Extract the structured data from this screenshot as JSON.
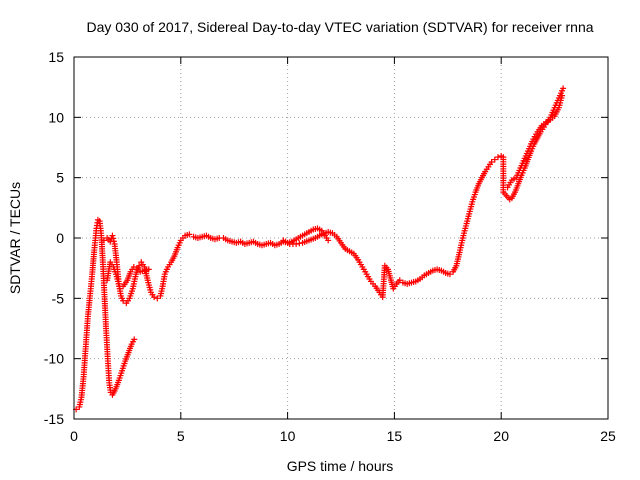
{
  "chart_data": {
    "type": "scatter",
    "title": "Day 030 of 2017, Sidereal Day-to-day VTEC variation (SDTVAR) for receiver rnna",
    "xlabel": "GPS time / hours",
    "ylabel": "SDTVAR / TECUs",
    "xlim": [
      0,
      25
    ],
    "ylim": [
      -15,
      15
    ],
    "xticks": [
      0,
      5,
      10,
      15,
      20,
      25
    ],
    "yticks": [
      -15,
      -10,
      -5,
      0,
      5,
      10,
      15
    ],
    "grid": true,
    "marker": "+",
    "color": "#ff0000",
    "series": [
      {
        "name": "SDTVAR",
        "points": [
          [
            0.1,
            -14.2
          ],
          [
            0.25,
            -14.0
          ],
          [
            0.35,
            -13.2
          ],
          [
            0.45,
            -11.5
          ],
          [
            0.55,
            -9.0
          ],
          [
            0.65,
            -6.5
          ],
          [
            0.75,
            -4.8
          ],
          [
            0.85,
            -3.0
          ],
          [
            0.95,
            -1.0
          ],
          [
            1.05,
            0.8
          ],
          [
            1.12,
            1.5
          ],
          [
            1.2,
            1.4
          ],
          [
            1.28,
            0.2
          ],
          [
            1.35,
            -2.0
          ],
          [
            1.42,
            -4.5
          ],
          [
            1.5,
            -7.5
          ],
          [
            1.58,
            -10.0
          ],
          [
            1.65,
            -12.0
          ],
          [
            1.72,
            -12.8
          ],
          [
            1.8,
            -13.0
          ],
          [
            1.95,
            -12.5
          ],
          [
            2.1,
            -11.8
          ],
          [
            2.25,
            -11.0
          ],
          [
            2.4,
            -10.2
          ],
          [
            2.55,
            -9.5
          ],
          [
            2.7,
            -8.8
          ],
          [
            2.82,
            -8.4
          ],
          [
            1.4,
            -0.2
          ],
          [
            1.55,
            0.0
          ],
          [
            1.7,
            -0.3
          ],
          [
            1.8,
            0.2
          ],
          [
            1.9,
            -0.5
          ],
          [
            2.0,
            -2.0
          ],
          [
            2.1,
            -3.8
          ],
          [
            2.2,
            -4.8
          ],
          [
            2.3,
            -5.2
          ],
          [
            2.45,
            -5.4
          ],
          [
            2.6,
            -5.0
          ],
          [
            2.75,
            -4.2
          ],
          [
            2.9,
            -3.0
          ],
          [
            3.05,
            -2.3
          ],
          [
            3.15,
            -2.0
          ],
          [
            3.3,
            -2.4
          ],
          [
            3.45,
            -3.5
          ],
          [
            3.6,
            -4.5
          ],
          [
            3.75,
            -4.9
          ],
          [
            3.9,
            -5.0
          ],
          [
            4.05,
            -4.8
          ],
          [
            4.15,
            -4.0
          ],
          [
            4.25,
            -3.0
          ],
          [
            4.4,
            -2.4
          ],
          [
            4.55,
            -2.0
          ],
          [
            4.7,
            -1.5
          ],
          [
            4.85,
            -0.8
          ],
          [
            5.0,
            -0.2
          ],
          [
            5.2,
            0.2
          ],
          [
            5.4,
            0.3
          ],
          [
            1.55,
            -3.5
          ],
          [
            1.7,
            -2.0
          ],
          [
            1.85,
            -2.4
          ],
          [
            2.0,
            -3.2
          ],
          [
            2.15,
            -4.2
          ],
          [
            2.3,
            -4.0
          ],
          [
            2.5,
            -3.5
          ],
          [
            2.65,
            -2.8
          ],
          [
            2.8,
            -2.4
          ],
          [
            2.95,
            -2.6
          ],
          [
            3.1,
            -2.8
          ],
          [
            3.3,
            -2.7
          ],
          [
            3.5,
            -2.6
          ],
          [
            5.6,
            0.1
          ],
          [
            5.8,
            0.0
          ],
          [
            6.0,
            0.1
          ],
          [
            6.2,
            0.2
          ],
          [
            6.4,
            0.0
          ],
          [
            6.6,
            -0.1
          ],
          [
            6.8,
            0.0
          ],
          [
            7.0,
            0.0
          ],
          [
            7.2,
            -0.2
          ],
          [
            7.4,
            -0.3
          ],
          [
            7.6,
            -0.4
          ],
          [
            7.8,
            -0.3
          ],
          [
            8.0,
            -0.5
          ],
          [
            8.2,
            -0.4
          ],
          [
            8.4,
            -0.3
          ],
          [
            8.6,
            -0.5
          ],
          [
            8.8,
            -0.6
          ],
          [
            9.0,
            -0.5
          ],
          [
            9.2,
            -0.4
          ],
          [
            9.4,
            -0.6
          ],
          [
            9.6,
            -0.5
          ],
          [
            9.8,
            -0.3
          ],
          [
            10.0,
            -0.4
          ],
          [
            10.2,
            -0.3
          ],
          [
            10.4,
            -0.1
          ],
          [
            10.6,
            0.1
          ],
          [
            10.8,
            0.3
          ],
          [
            11.0,
            0.5
          ],
          [
            11.2,
            0.7
          ],
          [
            11.4,
            0.8
          ],
          [
            11.6,
            0.6
          ],
          [
            11.75,
            0.2
          ],
          [
            11.9,
            -0.2
          ],
          [
            9.8,
            -0.2
          ],
          [
            10.1,
            -0.5
          ],
          [
            10.4,
            -0.5
          ],
          [
            10.7,
            -0.4
          ],
          [
            11.0,
            -0.2
          ],
          [
            11.3,
            0.0
          ],
          [
            11.6,
            0.3
          ],
          [
            11.9,
            0.5
          ],
          [
            12.1,
            0.4
          ],
          [
            12.3,
            0.1
          ],
          [
            12.5,
            -0.4
          ],
          [
            12.7,
            -0.9
          ],
          [
            12.9,
            -1.1
          ],
          [
            13.1,
            -1.3
          ],
          [
            13.3,
            -1.8
          ],
          [
            13.5,
            -2.4
          ],
          [
            13.7,
            -3.0
          ],
          [
            13.9,
            -3.6
          ],
          [
            14.1,
            -4.0
          ],
          [
            14.3,
            -4.5
          ],
          [
            14.45,
            -4.9
          ],
          [
            14.55,
            -2.3
          ],
          [
            14.7,
            -2.6
          ],
          [
            14.95,
            -4.2
          ],
          [
            15.1,
            -3.8
          ],
          [
            15.25,
            -3.5
          ],
          [
            15.4,
            -3.7
          ],
          [
            15.6,
            -3.8
          ],
          [
            15.8,
            -3.7
          ],
          [
            16.0,
            -3.6
          ],
          [
            16.2,
            -3.4
          ],
          [
            16.4,
            -3.1
          ],
          [
            16.6,
            -2.9
          ],
          [
            16.8,
            -2.7
          ],
          [
            17.0,
            -2.6
          ],
          [
            17.2,
            -2.7
          ],
          [
            17.4,
            -2.9
          ],
          [
            17.6,
            -3.0
          ],
          [
            17.75,
            -2.8
          ],
          [
            17.9,
            -2.3
          ],
          [
            18.05,
            -1.2
          ],
          [
            18.2,
            0.0
          ],
          [
            18.35,
            1.0
          ],
          [
            18.5,
            2.0
          ],
          [
            18.65,
            3.0
          ],
          [
            18.8,
            3.8
          ],
          [
            18.95,
            4.5
          ],
          [
            19.1,
            5.0
          ],
          [
            19.25,
            5.5
          ],
          [
            19.4,
            5.9
          ],
          [
            19.55,
            6.3
          ],
          [
            19.7,
            6.5
          ],
          [
            19.85,
            6.7
          ],
          [
            20.0,
            6.8
          ],
          [
            20.1,
            6.7
          ],
          [
            20.1,
            3.8
          ],
          [
            20.25,
            3.5
          ],
          [
            20.4,
            3.2
          ],
          [
            20.5,
            3.3
          ],
          [
            20.65,
            3.8
          ],
          [
            20.8,
            4.5
          ],
          [
            20.95,
            5.2
          ],
          [
            21.1,
            5.8
          ],
          [
            21.25,
            6.5
          ],
          [
            21.4,
            7.2
          ],
          [
            21.55,
            7.8
          ],
          [
            21.7,
            8.3
          ],
          [
            21.85,
            8.8
          ],
          [
            22.0,
            9.2
          ],
          [
            22.15,
            9.6
          ],
          [
            22.3,
            10.0
          ],
          [
            22.45,
            10.6
          ],
          [
            22.6,
            11.2
          ],
          [
            22.75,
            11.8
          ],
          [
            22.9,
            12.4
          ],
          [
            20.3,
            4.2
          ],
          [
            20.5,
            4.8
          ],
          [
            20.7,
            5.0
          ],
          [
            20.9,
            5.8
          ],
          [
            21.1,
            6.6
          ],
          [
            21.3,
            7.4
          ],
          [
            21.5,
            8.2
          ],
          [
            21.7,
            8.8
          ],
          [
            21.9,
            9.3
          ],
          [
            22.1,
            9.6
          ],
          [
            22.3,
            9.8
          ],
          [
            22.5,
            10.1
          ],
          [
            22.7,
            10.8
          ],
          [
            22.85,
            11.8
          ]
        ]
      }
    ]
  }
}
